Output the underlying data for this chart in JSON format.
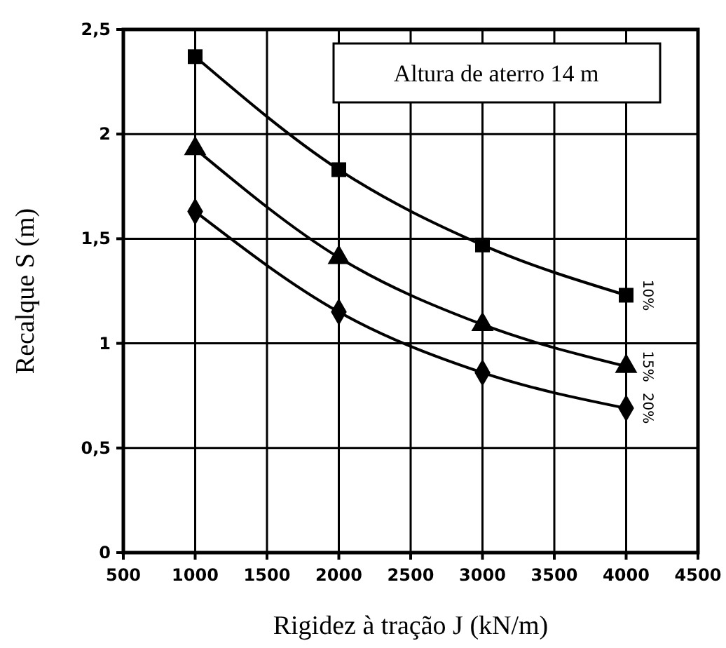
{
  "chart_data": {
    "type": "line",
    "xlabel": "Rigidez à tração J (kN/m)",
    "ylabel": "Recalque S (m)",
    "x": [
      1000,
      2000,
      3000,
      4000
    ],
    "series": [
      {
        "name": "10%",
        "color": "#000000",
        "marker": "square",
        "values": [
          2.37,
          1.83,
          1.47,
          1.23
        ]
      },
      {
        "name": "15%",
        "color": "#000000",
        "marker": "triangle",
        "values": [
          1.93,
          1.41,
          1.09,
          0.89
        ]
      },
      {
        "name": "20%",
        "color": "#000000",
        "marker": "diamond",
        "values": [
          1.63,
          1.15,
          0.86,
          0.69
        ]
      }
    ],
    "xlim": [
      500,
      4500
    ],
    "xticks": [
      500,
      1000,
      1500,
      2000,
      2500,
      3000,
      3500,
      4000,
      4500
    ],
    "ylim": [
      0,
      2.5
    ],
    "yticks": [
      0,
      {
        "value": 0.5,
        "label": "0,5"
      },
      1,
      {
        "value": 1.5,
        "label": "1,5"
      },
      2,
      {
        "value": 2.5,
        "label": "2,5"
      }
    ],
    "grid": true,
    "line_style": "solid",
    "annotations": [
      "Altura de aterro 14 m"
    ]
  }
}
